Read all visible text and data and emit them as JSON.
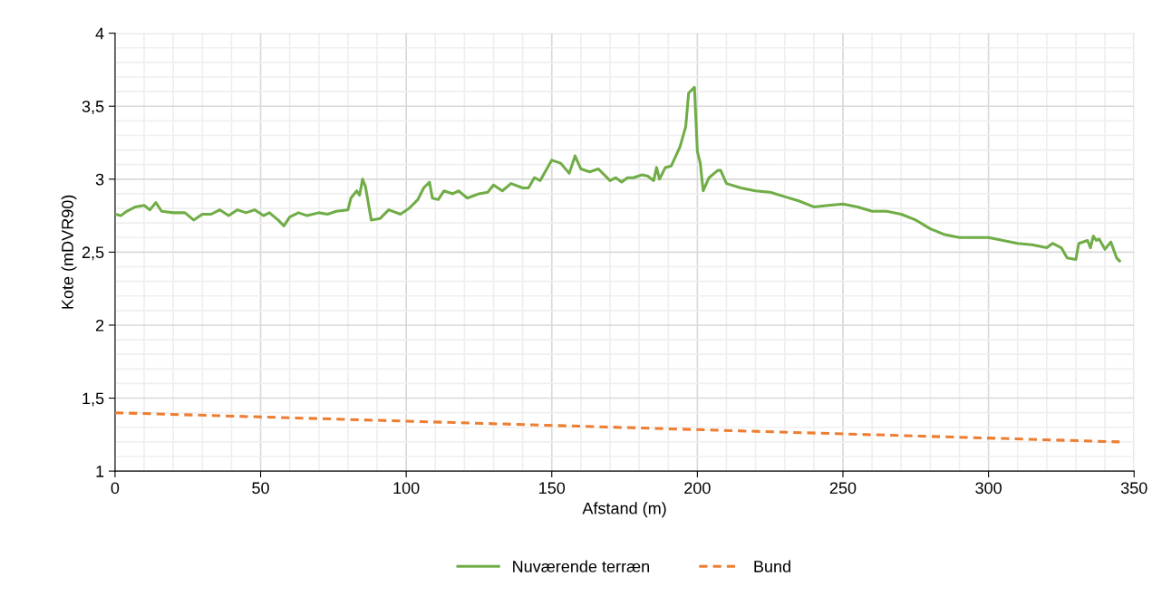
{
  "chart_data": {
    "type": "line",
    "xlabel": "Afstand (m)",
    "ylabel": "Kote (mDVR90)",
    "xlim": [
      0,
      350
    ],
    "xticks": [
      0,
      50,
      100,
      150,
      200,
      250,
      300,
      350
    ],
    "ylim": [
      1,
      4
    ],
    "yticks": [
      {
        "value": 1,
        "label": "1"
      },
      {
        "value": 1.5,
        "label": "1,5"
      },
      {
        "value": 2,
        "label": "2"
      },
      {
        "value": 2.5,
        "label": "2,5"
      },
      {
        "value": 3,
        "label": "3"
      },
      {
        "value": 3.5,
        "label": "3,5"
      },
      {
        "value": 4,
        "label": "4"
      }
    ],
    "grid": true,
    "legend": "bottom",
    "series": [
      {
        "name": "Nuværende terræn",
        "color": "#70ad47",
        "line_style": "solid",
        "x": [
          0,
          2,
          4,
          7,
          10,
          12,
          14,
          16,
          20,
          24,
          27,
          30,
          33,
          36,
          39,
          42,
          45,
          48,
          51,
          53,
          56,
          58,
          60,
          63,
          66,
          70,
          73,
          76,
          80,
          81,
          83,
          84,
          85,
          86,
          88,
          91,
          94,
          98,
          101,
          104,
          106,
          108,
          109,
          111,
          113,
          116,
          118,
          121,
          125,
          128,
          130,
          133,
          136,
          140,
          142,
          144,
          146,
          150,
          153,
          156,
          158,
          160,
          163,
          166,
          170,
          172,
          174,
          176,
          178,
          181,
          183,
          185,
          186,
          187,
          189,
          191,
          194,
          196,
          197,
          199,
          200,
          201,
          202,
          204,
          207,
          208,
          210,
          215,
          220,
          225,
          230,
          235,
          240,
          245,
          250,
          255,
          260,
          265,
          270,
          275,
          280,
          285,
          290,
          295,
          300,
          305,
          310,
          315,
          320,
          322,
          325,
          327,
          330,
          331,
          334,
          335,
          336,
          337,
          338,
          340,
          342,
          344,
          345
        ],
        "values": [
          2.76,
          2.75,
          2.78,
          2.81,
          2.82,
          2.79,
          2.84,
          2.78,
          2.77,
          2.77,
          2.72,
          2.76,
          2.76,
          2.79,
          2.75,
          2.79,
          2.77,
          2.79,
          2.75,
          2.77,
          2.72,
          2.68,
          2.74,
          2.77,
          2.75,
          2.77,
          2.76,
          2.78,
          2.79,
          2.87,
          2.92,
          2.89,
          3.0,
          2.95,
          2.72,
          2.73,
          2.79,
          2.76,
          2.8,
          2.86,
          2.94,
          2.98,
          2.87,
          2.86,
          2.92,
          2.9,
          2.92,
          2.87,
          2.9,
          2.91,
          2.96,
          2.92,
          2.97,
          2.94,
          2.94,
          3.01,
          2.99,
          3.13,
          3.11,
          3.04,
          3.16,
          3.07,
          3.05,
          3.07,
          2.99,
          3.01,
          2.98,
          3.01,
          3.01,
          3.03,
          3.02,
          2.99,
          3.08,
          3.0,
          3.08,
          3.09,
          3.22,
          3.36,
          3.59,
          3.63,
          3.19,
          3.11,
          2.92,
          3.01,
          3.06,
          3.06,
          2.97,
          2.94,
          2.92,
          2.91,
          2.88,
          2.85,
          2.81,
          2.82,
          2.83,
          2.81,
          2.78,
          2.78,
          2.76,
          2.72,
          2.66,
          2.62,
          2.6,
          2.6,
          2.6,
          2.58,
          2.56,
          2.55,
          2.53,
          2.56,
          2.53,
          2.46,
          2.45,
          2.56,
          2.58,
          2.53,
          2.61,
          2.58,
          2.59,
          2.52,
          2.57,
          2.46,
          2.44
        ]
      },
      {
        "name": "Bund",
        "color": "#ed7d31",
        "line_style": "dashed",
        "x": [
          0,
          345
        ],
        "values": [
          1.4,
          1.2
        ]
      }
    ]
  }
}
